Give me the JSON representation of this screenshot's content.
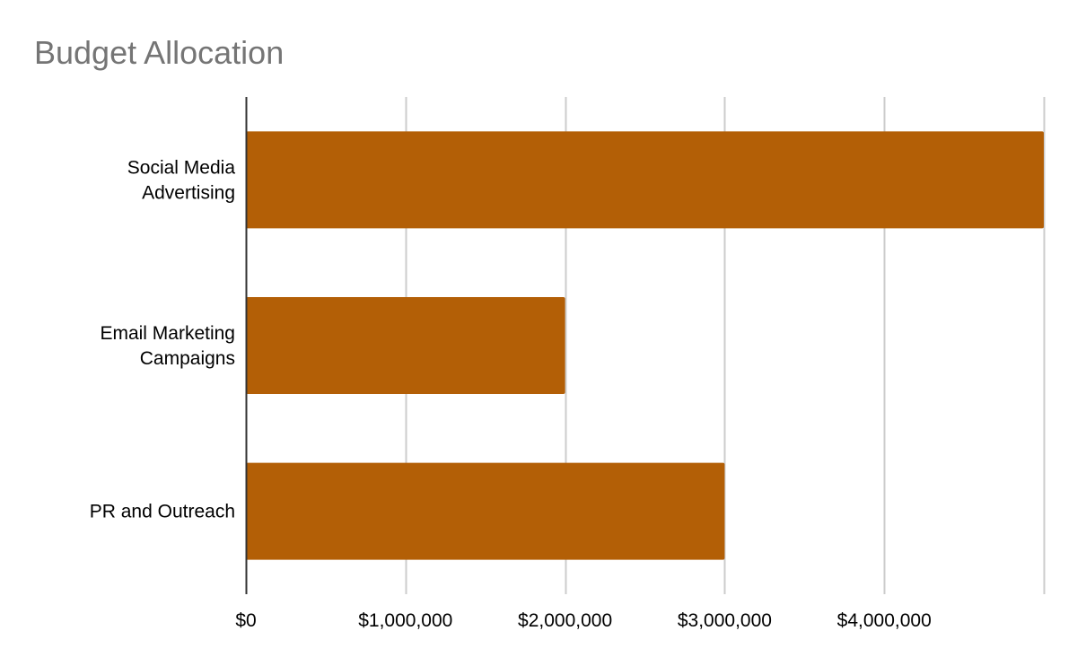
{
  "chart_data": {
    "type": "bar",
    "orientation": "horizontal",
    "title": "Budget Allocation",
    "xlabel": "",
    "ylabel": "",
    "categories": [
      "Social Media Advertising",
      "Email Marketing Campaigns",
      "PR and Outreach"
    ],
    "category_lines": [
      [
        "Social Media",
        "Advertising"
      ],
      [
        "Email Marketing",
        "Campaigns"
      ],
      [
        "PR and Outreach"
      ]
    ],
    "values": [
      5000000,
      2000000,
      3000000
    ],
    "xlim": [
      0,
      5000000
    ],
    "xticks": [
      0,
      1000000,
      2000000,
      3000000,
      4000000
    ],
    "xtick_labels": [
      "$0",
      "$1,000,000",
      "$2,000,000",
      "$3,000,000",
      "$4,000,000"
    ],
    "grid": true,
    "legend": "none",
    "bar_color": "#b35f06",
    "grid_color": "#cccccc",
    "axis_color": "#333333",
    "title_color": "#757575"
  }
}
